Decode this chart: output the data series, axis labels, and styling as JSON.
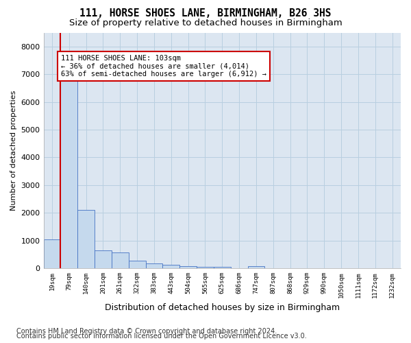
{
  "title": "111, HORSE SHOES LANE, BIRMINGHAM, B26 3HS",
  "subtitle": "Size of property relative to detached houses in Birmingham",
  "xlabel": "Distribution of detached houses by size in Birmingham",
  "ylabel": "Number of detached properties",
  "footnote1": "Contains HM Land Registry data © Crown copyright and database right 2024.",
  "footnote2": "Contains public sector information licensed under the Open Government Licence v3.0.",
  "bar_labels": [
    "19sqm",
    "79sqm",
    "140sqm",
    "201sqm",
    "261sqm",
    "322sqm",
    "383sqm",
    "443sqm",
    "504sqm",
    "565sqm",
    "625sqm",
    "686sqm",
    "747sqm",
    "807sqm",
    "868sqm",
    "929sqm",
    "990sqm",
    "1050sqm",
    "1111sqm",
    "1172sqm",
    "1232sqm"
  ],
  "bar_values": [
    1050,
    7000,
    2100,
    640,
    570,
    280,
    175,
    125,
    80,
    55,
    50,
    0,
    70,
    0,
    0,
    0,
    0,
    0,
    0,
    0,
    0
  ],
  "bar_color": "#c5d9ed",
  "bar_edge_color": "#4472c4",
  "vline_x": 1.0,
  "annotation_text": "111 HORSE SHOES LANE: 103sqm\n← 36% of detached houses are smaller (4,014)\n63% of semi-detached houses are larger (6,912) →",
  "annotation_box_color": "#ffffff",
  "annotation_box_edge": "#cc0000",
  "vline_color": "#cc0000",
  "ylim": [
    0,
    8500
  ],
  "yticks": [
    0,
    1000,
    2000,
    3000,
    4000,
    5000,
    6000,
    7000,
    8000
  ],
  "grid_color": "#b8cfe0",
  "plot_bg_color": "#dce6f1",
  "fig_bg_color": "#ffffff",
  "title_fontsize": 10.5,
  "subtitle_fontsize": 9.5,
  "footnote_fontsize": 7.0
}
